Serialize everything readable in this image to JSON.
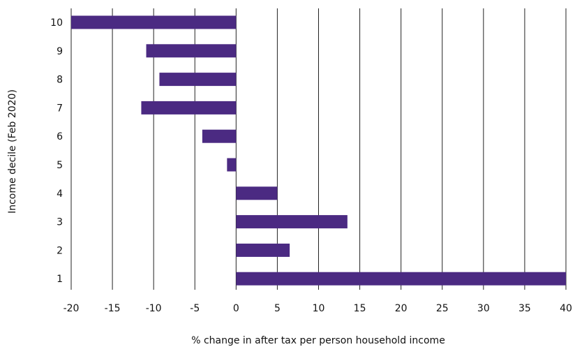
{
  "chart_data": {
    "type": "bar",
    "orientation": "horizontal",
    "categories": [
      "10",
      "9",
      "8",
      "7",
      "6",
      "5",
      "4",
      "3",
      "2",
      "1"
    ],
    "values": [
      -20,
      -10.9,
      -9.3,
      -11.5,
      -4.1,
      -1.1,
      5,
      13.5,
      6.5,
      40
    ],
    "xlabel": "% change in after tax per person household income",
    "ylabel": "Income decile (Feb 2020)",
    "xlim": [
      -20,
      40
    ],
    "xticks": [
      "-20",
      "-15",
      "-10",
      "-5",
      "0",
      "5",
      "10",
      "15",
      "20",
      "25",
      "30",
      "35",
      "40"
    ],
    "grid": "vertical",
    "bar_color": "#4b2a82"
  }
}
